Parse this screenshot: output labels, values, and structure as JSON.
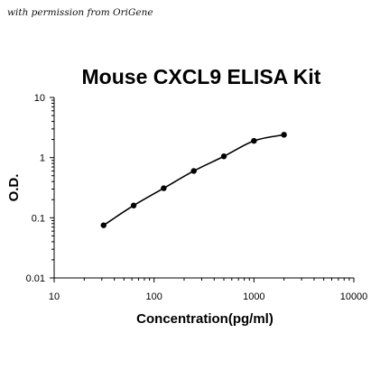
{
  "header": {
    "permission_text": "with permission from OriGene"
  },
  "chart_data": {
    "type": "scatter",
    "title": "Mouse CXCL9 ELISA Kit",
    "xlabel": "Concentration(pg/ml)",
    "ylabel": "O.D.",
    "x_scale": "log",
    "y_scale": "log",
    "xlim": [
      10,
      10000
    ],
    "ylim": [
      0.01,
      10
    ],
    "x_ticks": [
      "10",
      "100",
      "1000",
      "10000"
    ],
    "y_ticks": [
      "0.01",
      "0.1",
      "1",
      "10"
    ],
    "grid": false,
    "legend": "none",
    "has_fit_curve": true,
    "colors": {
      "points": "#000000",
      "line": "#000000",
      "axes": "#000000"
    },
    "series": [
      {
        "x": [
          31.25,
          62.5,
          125,
          250,
          500,
          1000,
          2000
        ],
        "y": [
          0.075,
          0.16,
          0.31,
          0.6,
          1.05,
          1.9,
          2.4
        ]
      }
    ]
  }
}
